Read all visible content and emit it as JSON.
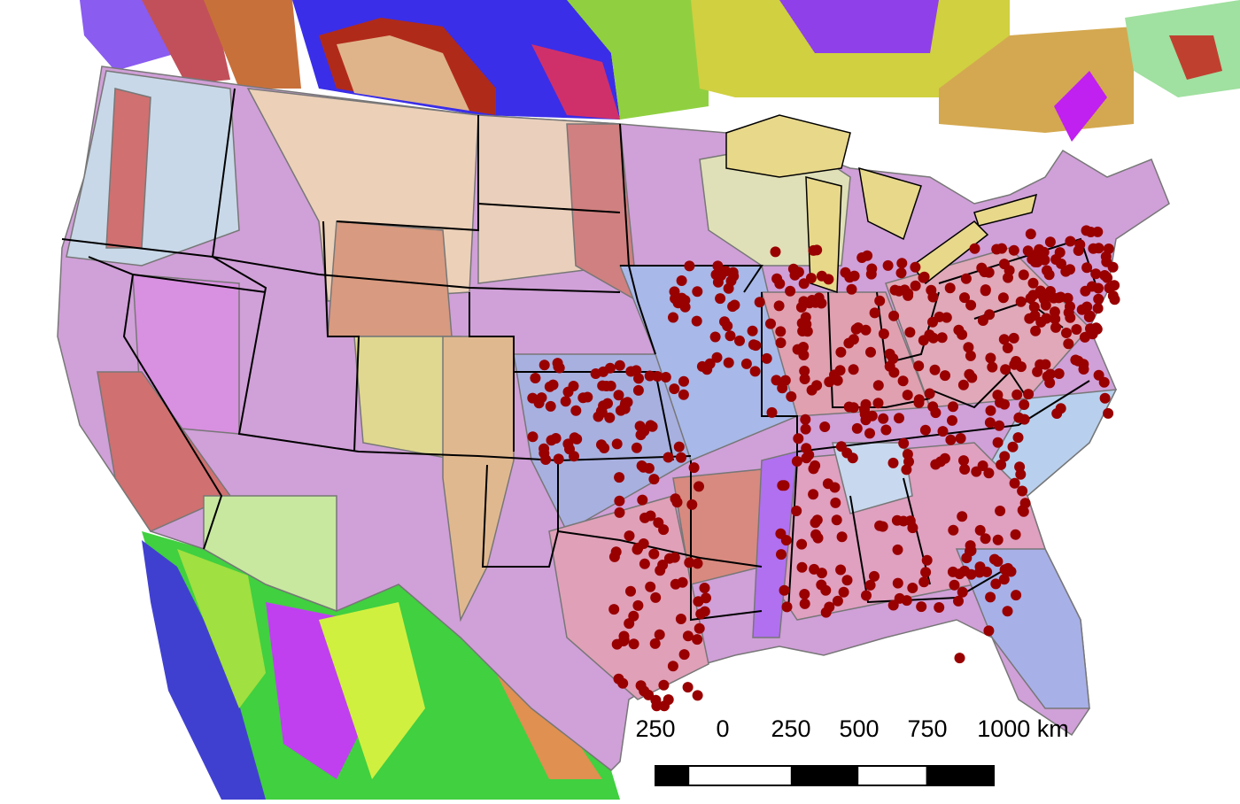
{
  "scale_bar": {
    "labels": [
      "250",
      "0",
      "250",
      "500",
      "750",
      "1000 km"
    ]
  }
}
